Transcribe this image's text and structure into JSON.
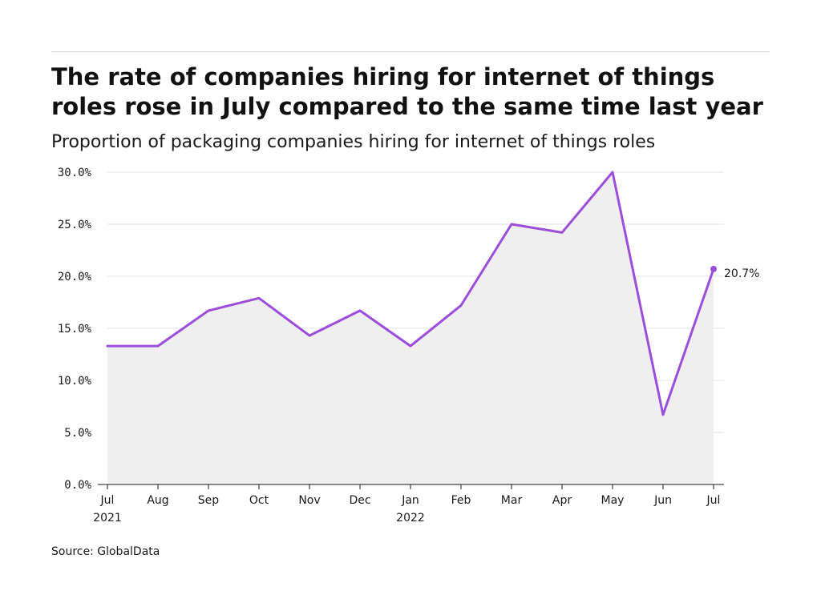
{
  "chart_data": {
    "type": "line",
    "title": "The rate of companies hiring for internet of things roles rose in July compared to the same time last year",
    "subtitle": "Proportion of packaging companies hiring for internet of things roles",
    "source": "Source: GlobalData",
    "x": [
      "Jul",
      "Aug",
      "Sep",
      "Oct",
      "Nov",
      "Dec",
      "Jan",
      "Feb",
      "Mar",
      "Apr",
      "May",
      "Jun",
      "Jul"
    ],
    "x_year_labels": [
      "2021",
      "",
      "",
      "",
      "",
      "",
      "2022",
      "",
      "",
      "",
      "",
      "",
      ""
    ],
    "series": [
      {
        "values": [
          13.3,
          13.3,
          16.7,
          17.9,
          14.3,
          16.7,
          13.3,
          17.2,
          25.0,
          24.2,
          30.0,
          6.7,
          20.7
        ],
        "color": "#9b4ddb",
        "area_color": "#efefef"
      }
    ],
    "yticks": [
      "0.0%",
      "5.0%",
      "10.0%",
      "15.0%",
      "20.0%",
      "25.0%",
      "30.0%"
    ],
    "ylim": [
      0,
      30
    ],
    "end_label": "20.7%",
    "grid": true,
    "legend": "none"
  }
}
